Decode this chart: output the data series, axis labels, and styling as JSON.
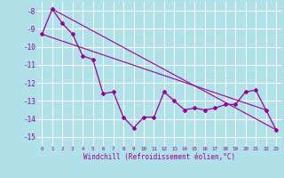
{
  "xlabel": "Windchill (Refroidissement éolien,°C)",
  "bg_color": "#b0e0e8",
  "grid_color": "#ffffff",
  "line_color": "#9b009b",
  "x_values": [
    0,
    1,
    2,
    3,
    4,
    5,
    6,
    7,
    8,
    9,
    10,
    11,
    12,
    13,
    14,
    15,
    16,
    17,
    18,
    19,
    20,
    21,
    22,
    23
  ],
  "main_line": [
    -9.3,
    -7.9,
    -8.7,
    -9.3,
    -10.5,
    -10.7,
    -12.6,
    -12.5,
    -13.9,
    -14.5,
    -13.9,
    -13.9,
    -12.5,
    -13.0,
    -13.5,
    -13.4,
    -13.5,
    -13.4,
    -13.2,
    -13.2,
    -12.5,
    -12.4,
    -13.5,
    -14.6
  ],
  "trend1_x": [
    1,
    23
  ],
  "trend1_y": [
    -7.9,
    -14.6
  ],
  "trend2_x": [
    0,
    22
  ],
  "trend2_y": [
    -9.3,
    -13.5
  ],
  "ylim": [
    -15.5,
    -7.5
  ],
  "xlim": [
    -0.5,
    23.5
  ],
  "yticks": [
    -15,
    -14,
    -13,
    -12,
    -11,
    -10,
    -9,
    -8
  ],
  "xtick_labels": [
    "0",
    "1",
    "2",
    "3",
    "4",
    "5",
    "6",
    "7",
    "8",
    "9",
    "10",
    "11",
    "12",
    "13",
    "14",
    "15",
    "16",
    "17",
    "18",
    "19",
    "20",
    "21",
    "22",
    "23"
  ]
}
